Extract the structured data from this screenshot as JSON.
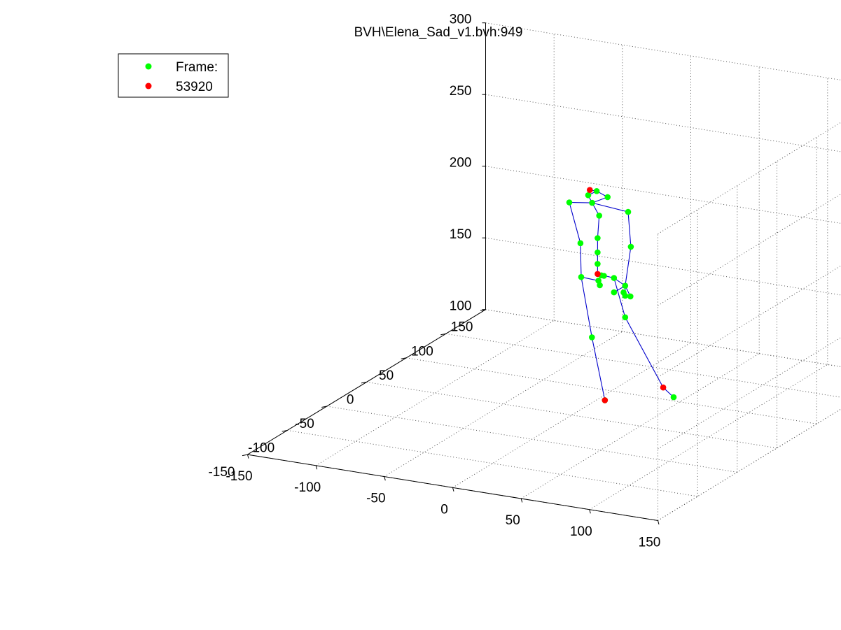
{
  "chart_data": {
    "type": "scatter",
    "projection": "3d",
    "title": "BVH\\Elena_Sad_v1.bvh:949",
    "legend": {
      "placement": "top-left",
      "entries": [
        {
          "label": "Frame:",
          "color": "#00ff00"
        },
        {
          "label": "53920",
          "color": "#ff0000"
        }
      ]
    },
    "grid": true,
    "axes": {
      "x": {
        "lim": [
          -150,
          150
        ],
        "ticks": [
          "-150",
          "-100",
          "-50",
          "0",
          "50",
          "100",
          "150"
        ]
      },
      "y": {
        "lim": [
          -150,
          150
        ],
        "ticks": [
          "-150",
          "-100",
          "-50",
          "0",
          "50",
          "100",
          "150"
        ]
      },
      "z": {
        "lim": [
          100,
          300
        ],
        "ticks": [
          "100",
          "150",
          "200",
          "250",
          "300"
        ]
      }
    },
    "colors": {
      "joint": "#00ff00",
      "end_joint": "#ff0000",
      "bone": "#0000cc"
    },
    "joints": [
      {
        "id": "head_top",
        "x": -10,
        "y": 40,
        "z": 242,
        "end": true
      },
      {
        "id": "head",
        "x": -5,
        "y": 40,
        "z": 242,
        "end": false
      },
      {
        "id": "head_l",
        "x": -10,
        "y": 38,
        "z": 239,
        "end": false
      },
      {
        "id": "head_r",
        "x": 3,
        "y": 40,
        "z": 239,
        "end": false
      },
      {
        "id": "neck",
        "x": -6,
        "y": 36,
        "z": 235,
        "end": false
      },
      {
        "id": "l_shoulder",
        "x": -25,
        "y": 40,
        "z": 231,
        "end": false
      },
      {
        "id": "r_shoulder",
        "x": 18,
        "y": 40,
        "z": 231,
        "end": false
      },
      {
        "id": "chest",
        "x": -2,
        "y": 38,
        "z": 226,
        "end": false
      },
      {
        "id": "spine2",
        "x": -2,
        "y": 36,
        "z": 211,
        "end": false
      },
      {
        "id": "l_elbow",
        "x": -18,
        "y": 42,
        "z": 203,
        "end": false
      },
      {
        "id": "r_elbow",
        "x": 20,
        "y": 40,
        "z": 207,
        "end": false
      },
      {
        "id": "spine1",
        "x": -2,
        "y": 36,
        "z": 201,
        "end": false
      },
      {
        "id": "spine0",
        "x": -2,
        "y": 36,
        "z": 193,
        "end": false
      },
      {
        "id": "hips",
        "x": -2,
        "y": 36,
        "z": 186,
        "end": true
      },
      {
        "id": "l_hip",
        "x": -14,
        "y": 36,
        "z": 182,
        "end": false
      },
      {
        "id": "r_hip",
        "x": 10,
        "y": 36,
        "z": 185,
        "end": false
      },
      {
        "id": "l_wrist",
        "x": -6,
        "y": 44,
        "z": 178,
        "end": false
      },
      {
        "id": "l_hand",
        "x": -5,
        "y": 44,
        "z": 175,
        "end": false
      },
      {
        "id": "l_hand_c",
        "x": -4,
        "y": 44,
        "z": 182,
        "end": false
      },
      {
        "id": "l_fing1",
        "x": -2,
        "y": 44,
        "z": 182,
        "end": false
      },
      {
        "id": "r_wrist",
        "x": 17,
        "y": 38,
        "z": 180,
        "end": false
      },
      {
        "id": "r_hand",
        "x": 17,
        "y": 38,
        "z": 173,
        "end": false
      },
      {
        "id": "r_hand_c",
        "x": 17,
        "y": 36,
        "z": 176,
        "end": false
      },
      {
        "id": "r_fing1",
        "x": 22,
        "y": 36,
        "z": 174,
        "end": false
      },
      {
        "id": "r_fing2",
        "x": 10,
        "y": 36,
        "z": 175,
        "end": false
      },
      {
        "id": "l_knee",
        "x": -5,
        "y": 34,
        "z": 142,
        "end": false
      },
      {
        "id": "r_knee",
        "x": 17,
        "y": 38,
        "z": 158,
        "end": false
      },
      {
        "id": "l_ankle",
        "x": 1,
        "y": 40,
        "z": 97,
        "end": false
      },
      {
        "id": "l_toe",
        "x": 1,
        "y": 40,
        "z": 97,
        "end": true
      },
      {
        "id": "r_ankle",
        "x": 39,
        "y": 48,
        "z": 109,
        "end": true
      },
      {
        "id": "r_toe",
        "x": 42,
        "y": 56,
        "z": 100,
        "end": false
      }
    ],
    "bones": [
      [
        "head",
        "head_top"
      ],
      [
        "head",
        "head_l"
      ],
      [
        "head",
        "head_r"
      ],
      [
        "head_l",
        "neck"
      ],
      [
        "head_r",
        "neck"
      ],
      [
        "neck",
        "l_shoulder"
      ],
      [
        "neck",
        "r_shoulder"
      ],
      [
        "neck",
        "chest"
      ],
      [
        "chest",
        "spine2"
      ],
      [
        "spine2",
        "spine1"
      ],
      [
        "spine1",
        "spine0"
      ],
      [
        "spine0",
        "hips"
      ],
      [
        "l_shoulder",
        "l_elbow"
      ],
      [
        "l_elbow",
        "l_hip"
      ],
      [
        "l_hip",
        "l_wrist"
      ],
      [
        "r_shoulder",
        "r_elbow"
      ],
      [
        "r_elbow",
        "r_wrist"
      ],
      [
        "hips",
        "l_hand_c"
      ],
      [
        "hips",
        "r_hip"
      ],
      [
        "r_hip",
        "r_wrist"
      ],
      [
        "l_wrist",
        "l_hand"
      ],
      [
        "l_hand_c",
        "l_fing1"
      ],
      [
        "r_wrist",
        "r_hand"
      ],
      [
        "r_wrist",
        "r_fing1"
      ],
      [
        "r_wrist",
        "r_fing2"
      ],
      [
        "r_hand",
        "r_hand_c"
      ],
      [
        "l_hip",
        "l_knee"
      ],
      [
        "l_knee",
        "l_ankle"
      ],
      [
        "l_ankle",
        "l_toe"
      ],
      [
        "r_hip",
        "r_knee"
      ],
      [
        "r_knee",
        "r_ankle"
      ],
      [
        "r_ankle",
        "r_toe"
      ]
    ]
  }
}
